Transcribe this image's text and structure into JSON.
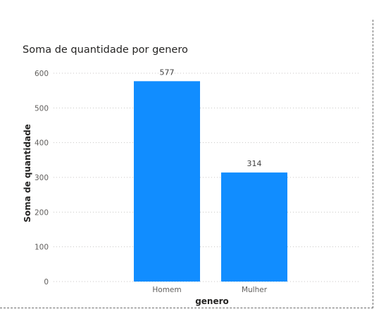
{
  "chart_data": {
    "type": "bar",
    "title": "Soma de quantidade por genero",
    "xlabel": "genero",
    "ylabel": "Soma de quantidade",
    "categories": [
      "Homem",
      "Mulher"
    ],
    "values": [
      577,
      314
    ],
    "data_labels": [
      "577",
      "314"
    ],
    "y_ticks": [
      0,
      100,
      200,
      300,
      400,
      500,
      600
    ],
    "ylim": [
      0,
      600
    ],
    "grid": true,
    "legend": "none",
    "bar_color": "#118DFF",
    "grid_color": "#c8c6c4"
  }
}
